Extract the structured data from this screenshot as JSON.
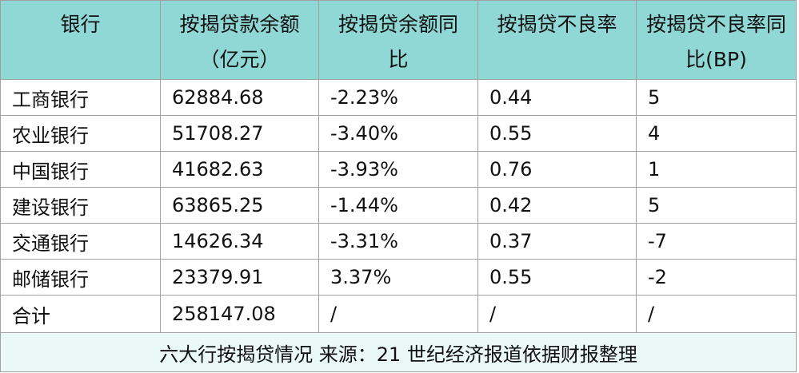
{
  "table": {
    "header": [
      "银行",
      "按揭贷款余额（亿元）",
      "按揭贷余额同比",
      "按揭贷不良率",
      "按揭贷不良率同比(BP)"
    ],
    "rows": [
      [
        "工商银行",
        "62884.68",
        "-2.23%",
        "0.44",
        "5"
      ],
      [
        "农业银行",
        "51708.27",
        "-3.40%",
        "0.55",
        "4"
      ],
      [
        "中国银行",
        "41682.63",
        "-3.93%",
        "0.76",
        "1"
      ],
      [
        "建设银行",
        "63865.25",
        "-1.44%",
        "0.42",
        "5"
      ],
      [
        "交通银行",
        "14626.34",
        "-3.31%",
        "0.37",
        "-7"
      ],
      [
        "邮储银行",
        "23379.91",
        "3.37%",
        "0.55",
        "-2"
      ],
      [
        "合计",
        "258147.08",
        "/",
        "/",
        "/"
      ]
    ],
    "caption": "六大行按揭贷情况 来源：21 世纪经济报道依据财报整理"
  }
}
